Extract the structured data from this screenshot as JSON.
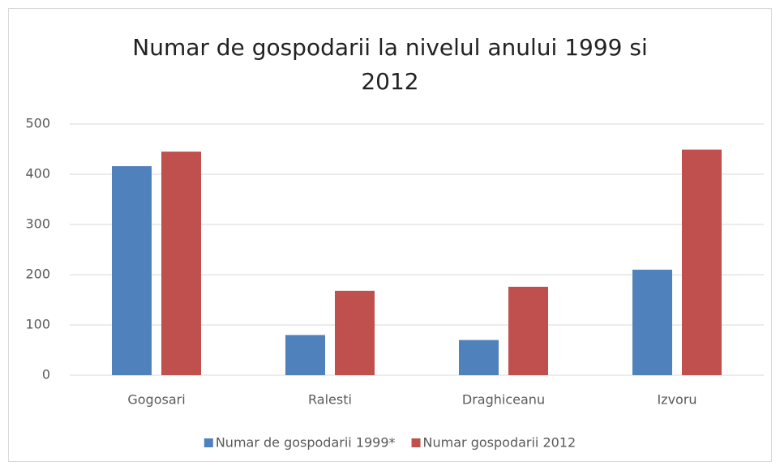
{
  "chart_data": {
    "type": "bar",
    "title": "Numar de gospodarii la nivelul anului 1999 si 2012",
    "categories": [
      "Gogosari",
      "Ralesti",
      "Draghiceanu",
      "Izvoru"
    ],
    "series": [
      {
        "name": "Numar de gospodarii 1999*",
        "color": "#4f81bd",
        "values": [
          416,
          80,
          70,
          210
        ]
      },
      {
        "name": "Numar gospodarii 2012",
        "color": "#c0504d",
        "values": [
          445,
          168,
          176,
          449
        ]
      }
    ],
    "ylim": [
      0,
      500
    ],
    "yticks": [
      0,
      100,
      200,
      300,
      400,
      500
    ],
    "grid": true,
    "legend": "bottom"
  }
}
